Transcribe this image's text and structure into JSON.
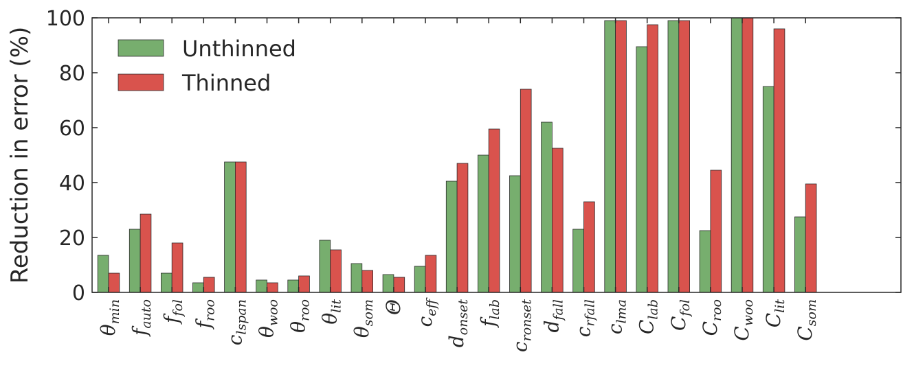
{
  "chart_data": {
    "type": "bar",
    "ylabel": "Reduction in error (%)",
    "ylim": [
      0,
      100
    ],
    "yticks": [
      0,
      20,
      40,
      60,
      80,
      100
    ],
    "grid": false,
    "legend_position": "top-left",
    "categories": [
      {
        "base": "θ",
        "sub": "min"
      },
      {
        "base": "f",
        "sub": "auto"
      },
      {
        "base": "f",
        "sub": "fol"
      },
      {
        "base": "f",
        "sub": "roo"
      },
      {
        "base": "c",
        "sub": "lspan"
      },
      {
        "base": "θ",
        "sub": "woo"
      },
      {
        "base": "θ",
        "sub": "roo"
      },
      {
        "base": "θ",
        "sub": "lit"
      },
      {
        "base": "θ",
        "sub": "som"
      },
      {
        "base": "Θ",
        "sub": ""
      },
      {
        "base": "c",
        "sub": "eff"
      },
      {
        "base": "d",
        "sub": "onset"
      },
      {
        "base": "f",
        "sub": "lab"
      },
      {
        "base": "c",
        "sub": "ronset"
      },
      {
        "base": "d",
        "sub": "fall"
      },
      {
        "base": "c",
        "sub": "rfall"
      },
      {
        "base": "c",
        "sub": "lma"
      },
      {
        "base": "C",
        "sub": "lab"
      },
      {
        "base": "C",
        "sub": "fol"
      },
      {
        "base": "C",
        "sub": "roo"
      },
      {
        "base": "C",
        "sub": "woo"
      },
      {
        "base": "C",
        "sub": "lit"
      },
      {
        "base": "C",
        "sub": "som"
      }
    ],
    "series": [
      {
        "name": "Unthinned",
        "color": "#77ae6e",
        "values": [
          13.5,
          23,
          7,
          3.5,
          47.5,
          4.5,
          4.5,
          19,
          10.5,
          6.5,
          9.5,
          40.5,
          50,
          42.5,
          62,
          23,
          99,
          89.5,
          99,
          22.5,
          100,
          75,
          27.5
        ]
      },
      {
        "name": "Thinned",
        "color": "#d9534d",
        "values": [
          7,
          28.5,
          18,
          5.5,
          47.5,
          3.5,
          6,
          15.5,
          8,
          5.5,
          13.5,
          47,
          59.5,
          74,
          52.5,
          33,
          99,
          97.5,
          99,
          44.5,
          100,
          96,
          39.5
        ]
      }
    ]
  }
}
